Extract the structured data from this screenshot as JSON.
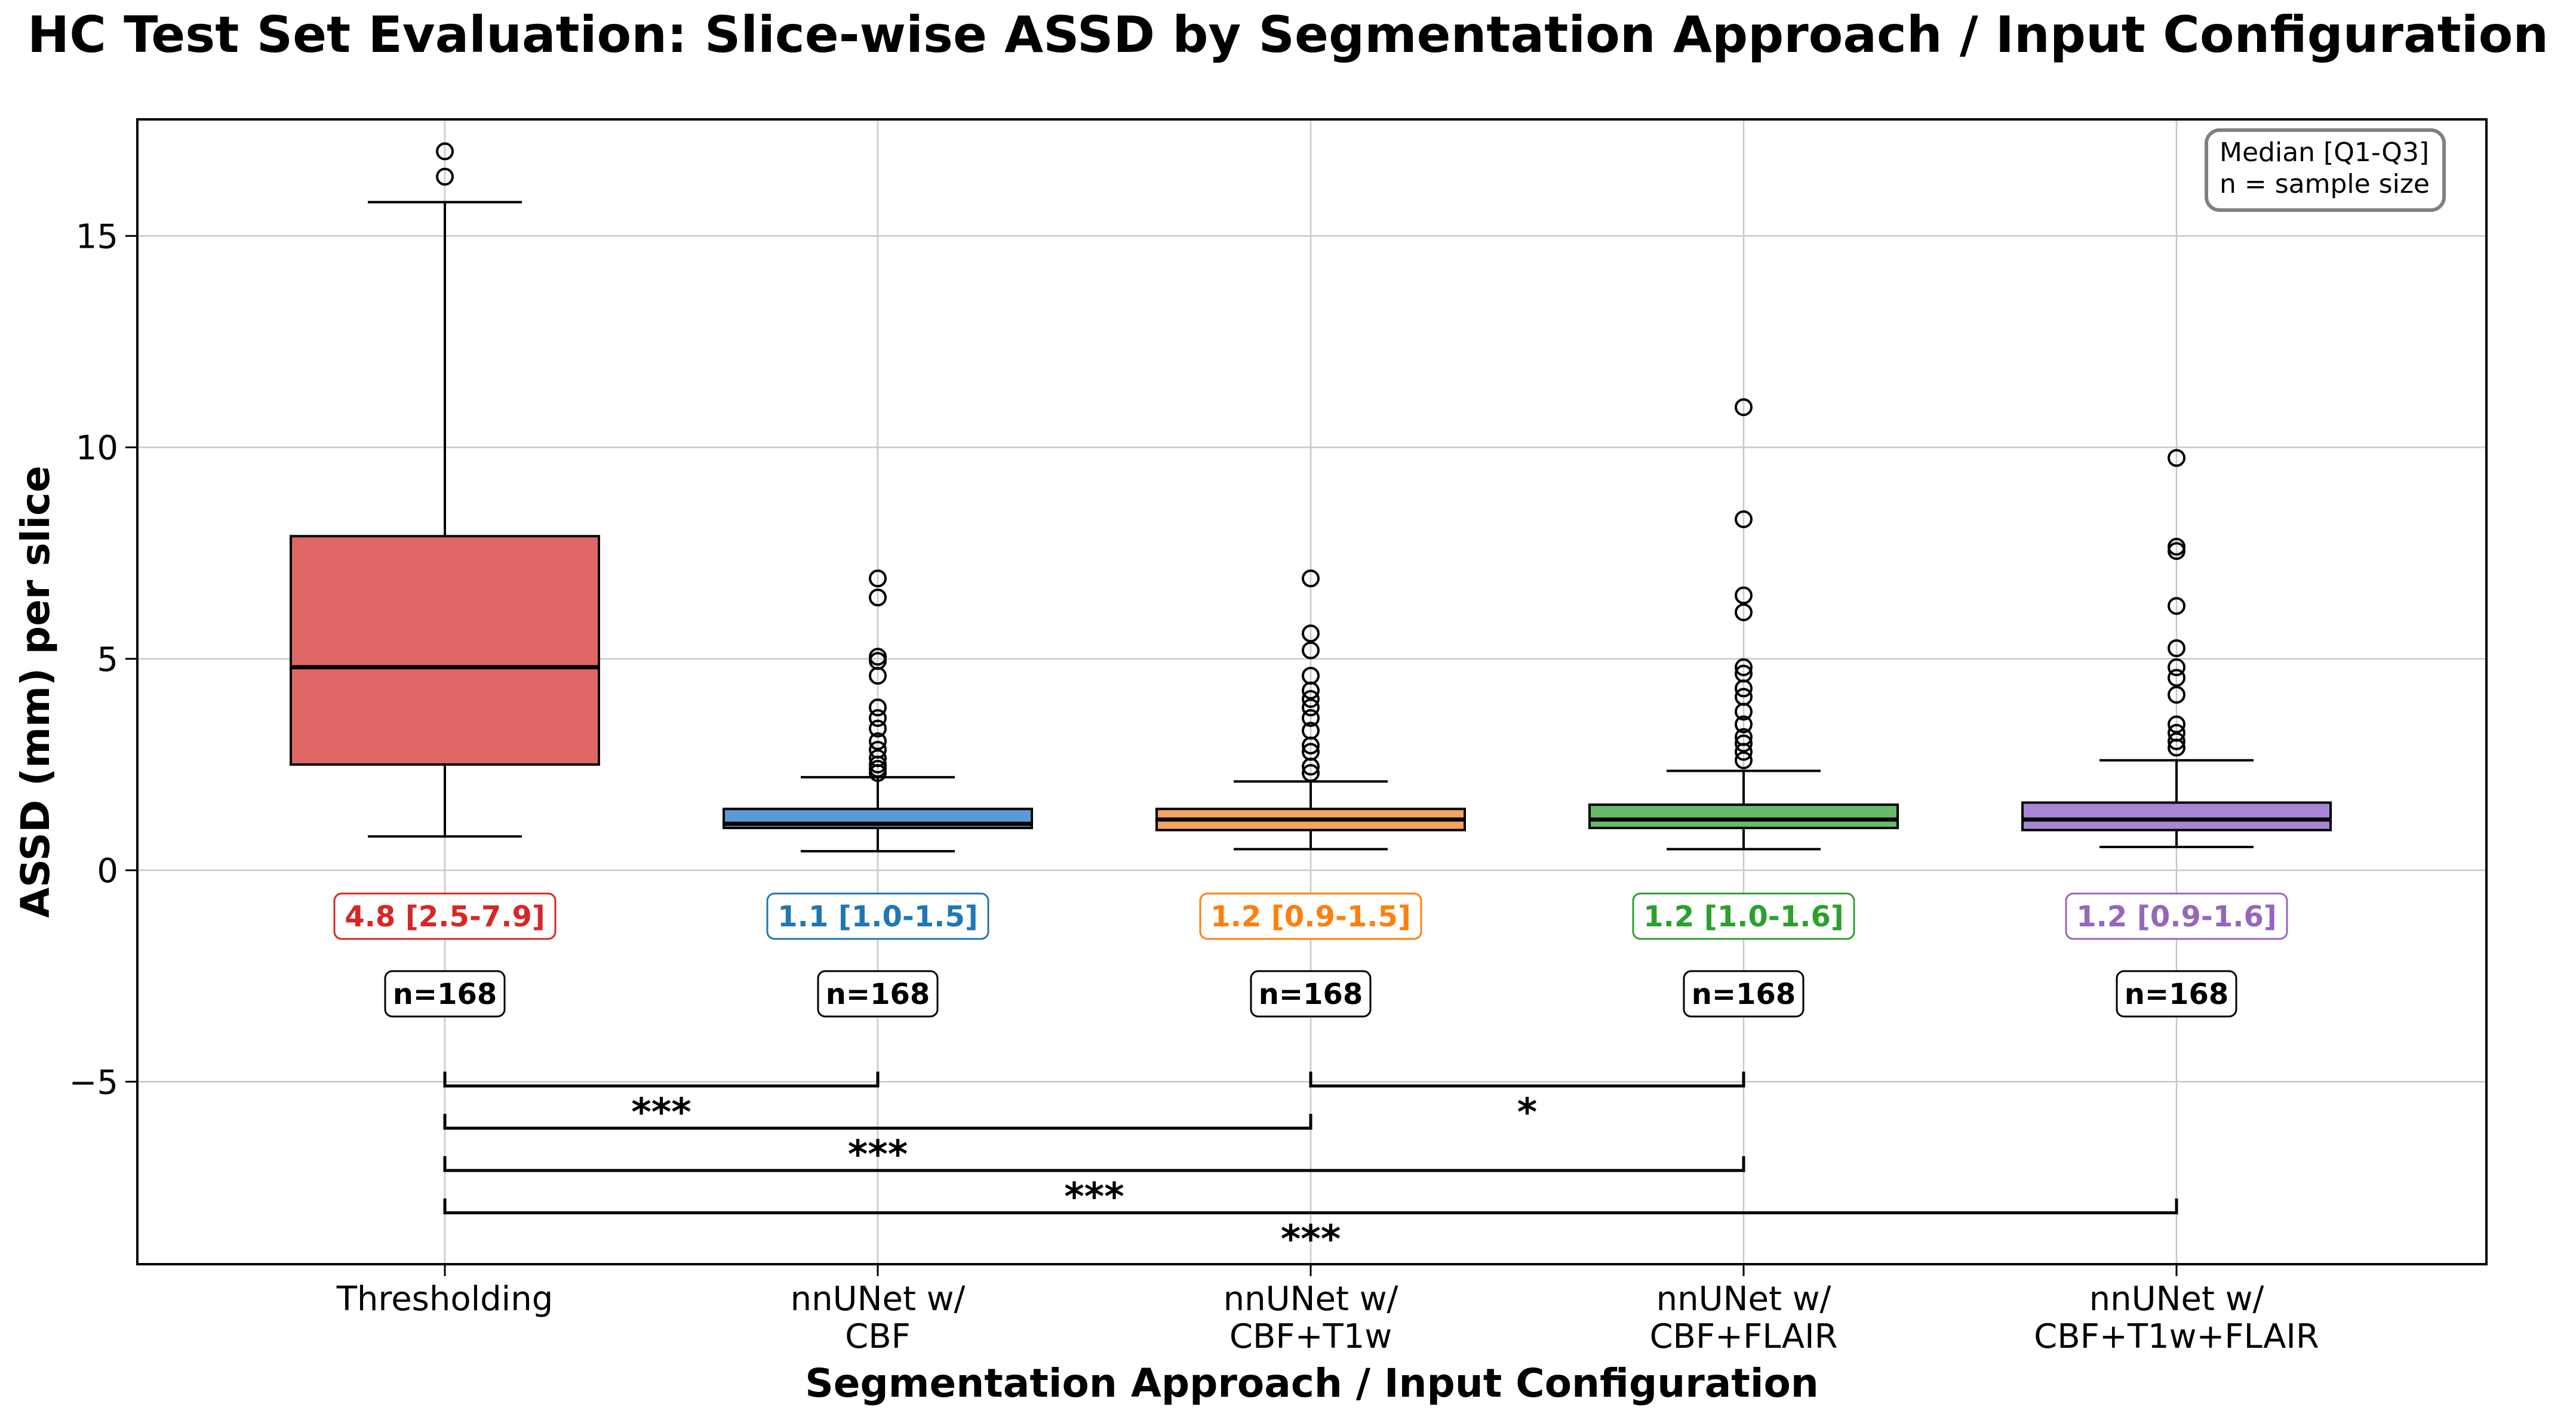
{
  "chart_data": {
    "type": "box",
    "title": "HC Test Set Evaluation: Slice-wise ASSD by Segmentation Approach / Input Configuration",
    "xlabel": "Segmentation Approach / Input Configuration",
    "ylabel": "ASSD (mm) per slice",
    "ylim": [
      -9.3,
      17.6
    ],
    "yticks": [
      -5,
      0,
      5,
      10,
      15
    ],
    "ytick_labels": [
      "−5",
      "0",
      "5",
      "10",
      "15"
    ],
    "grid": true,
    "legend_box": {
      "lines": [
        "Median [Q1-Q3]",
        "n = sample size"
      ],
      "placement": "top-right"
    },
    "series": [
      {
        "category_lines": [
          "Thresholding"
        ],
        "color": "#d62728",
        "fill": "#e06666",
        "whisker_low": 0.8,
        "q1": 2.5,
        "median": 4.8,
        "q3": 7.9,
        "whisker_high": 15.8,
        "outliers": [
          16.4,
          17.0
        ],
        "stat_label": "4.8 [2.5-7.9]",
        "n_label": "n=168"
      },
      {
        "category_lines": [
          "nnUNet w/",
          "CBF"
        ],
        "color": "#1f77b4",
        "fill": "#5b9bd5",
        "whisker_low": 0.45,
        "q1": 1.0,
        "median": 1.1,
        "q3": 1.45,
        "whisker_high": 2.2,
        "outliers": [
          2.3,
          2.4,
          2.5,
          2.65,
          2.85,
          3.05,
          3.35,
          3.6,
          3.85,
          4.6,
          4.95,
          5.05,
          6.45,
          6.9
        ],
        "stat_label": "1.1 [1.0-1.5]",
        "n_label": "n=168"
      },
      {
        "category_lines": [
          "nnUNet w/",
          "CBF+T1w"
        ],
        "color": "#ff7f0e",
        "fill": "#f4a460",
        "whisker_low": 0.5,
        "q1": 0.95,
        "median": 1.2,
        "q3": 1.45,
        "whisker_high": 2.1,
        "outliers": [
          2.3,
          2.45,
          2.8,
          2.95,
          3.3,
          3.6,
          3.85,
          4.05,
          4.25,
          4.6,
          5.2,
          5.6,
          6.9
        ],
        "stat_label": "1.2 [0.9-1.5]",
        "n_label": "n=168"
      },
      {
        "category_lines": [
          "nnUNet w/",
          "CBF+FLAIR"
        ],
        "color": "#2ca02c",
        "fill": "#66bb6a",
        "whisker_low": 0.5,
        "q1": 1.0,
        "median": 1.2,
        "q3": 1.55,
        "whisker_high": 2.35,
        "outliers": [
          2.6,
          2.8,
          3.0,
          3.15,
          3.45,
          3.75,
          4.1,
          4.3,
          4.65,
          4.8,
          6.1,
          6.5,
          8.3,
          10.95
        ],
        "stat_label": "1.2 [1.0-1.6]",
        "n_label": "n=168"
      },
      {
        "category_lines": [
          "nnUNet w/",
          "CBF+T1w+FLAIR"
        ],
        "color": "#9467bd",
        "fill": "#a985d6",
        "whisker_low": 0.55,
        "q1": 0.95,
        "median": 1.2,
        "q3": 1.6,
        "whisker_high": 2.6,
        "outliers": [
          2.9,
          3.05,
          3.25,
          3.45,
          4.15,
          4.55,
          4.8,
          5.25,
          6.25,
          7.55,
          7.65,
          9.75
        ],
        "stat_label": "1.2 [0.9-1.6]",
        "n_label": "n=168"
      }
    ],
    "significance": [
      {
        "from": 0,
        "to": 1,
        "y": -5.1,
        "label": "***"
      },
      {
        "from": 2,
        "to": 3,
        "y": -5.1,
        "label": "*"
      },
      {
        "from": 0,
        "to": 2,
        "y": -6.1,
        "label": "***"
      },
      {
        "from": 0,
        "to": 3,
        "y": -7.1,
        "label": "***"
      },
      {
        "from": 0,
        "to": 4,
        "y": -8.1,
        "label": "***"
      }
    ]
  }
}
